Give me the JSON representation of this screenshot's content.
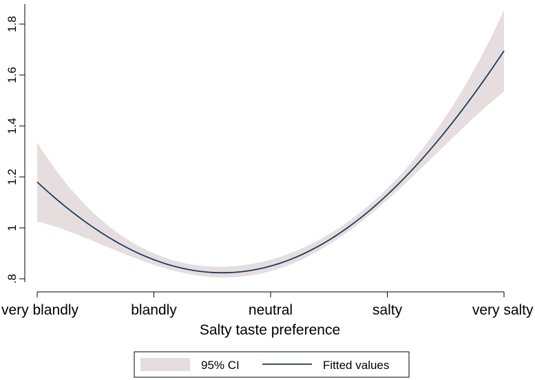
{
  "chart_data": {
    "type": "line",
    "xlabel": "Salty taste preference",
    "ylabel": "",
    "categories": [
      "very blandly",
      "blandly",
      "neutral",
      "salty",
      "very salty"
    ],
    "x": [
      0,
      1,
      2,
      3,
      4
    ],
    "xlim": [
      0,
      4
    ],
    "ylim": [
      0.8,
      1.85
    ],
    "yticks": [
      0.8,
      1,
      1.2,
      1.4,
      1.6,
      1.8
    ],
    "ytick_labels": [
      ".8",
      "1",
      "1.2",
      "1.4",
      "1.6",
      "1.8"
    ],
    "grid": false,
    "legend_position": "bottom",
    "series": [
      {
        "name": "Fitted values",
        "color": "#1a3a5c",
        "values": [
          1.18,
          0.875,
          0.85,
          1.13,
          1.695
        ]
      },
      {
        "name": "95% CI",
        "type": "band",
        "color": "#e6dede",
        "lower": [
          1.025,
          0.855,
          0.83,
          1.11,
          1.535
        ],
        "upper": [
          1.335,
          0.9,
          0.875,
          1.155,
          1.855
        ]
      }
    ]
  }
}
